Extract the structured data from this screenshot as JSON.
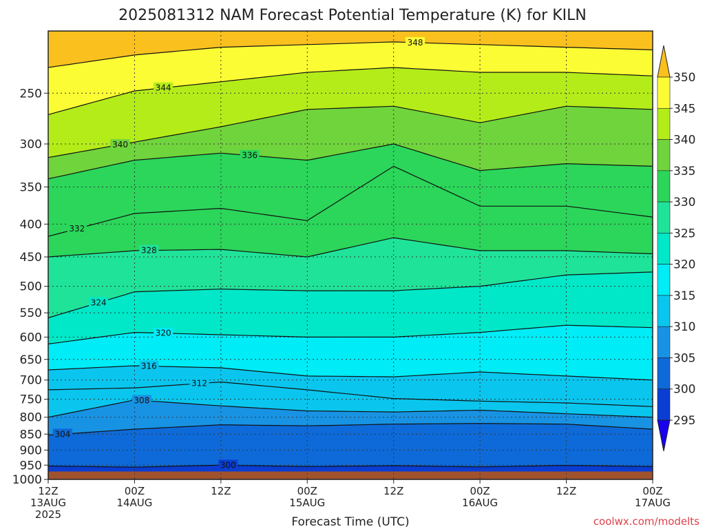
{
  "title": "2025081312 NAM Forecast Potential Temperature (K) for KILN",
  "xlabel": "Forecast Time (UTC)",
  "credit": "coolwx.com/modelts",
  "chart_data": {
    "type": "heatmap",
    "title": "2025081312 NAM Forecast Potential Temperature (K) for KILN",
    "xlabel": "Forecast Time (UTC)",
    "ylabel": "",
    "x_ticks": [
      {
        "hour": 0,
        "line1": "12Z",
        "line2": "13AUG",
        "line3": "2025"
      },
      {
        "hour": 12,
        "line1": "00Z",
        "line2": "14AUG",
        "line3": ""
      },
      {
        "hour": 24,
        "line1": "12Z",
        "line2": "",
        "line3": ""
      },
      {
        "hour": 36,
        "line1": "00Z",
        "line2": "15AUG",
        "line3": ""
      },
      {
        "hour": 48,
        "line1": "12Z",
        "line2": "",
        "line3": ""
      },
      {
        "hour": 60,
        "line1": "00Z",
        "line2": "16AUG",
        "line3": ""
      },
      {
        "hour": 72,
        "line1": "12Z",
        "line2": "",
        "line3": ""
      },
      {
        "hour": 84,
        "line1": "00Z",
        "line2": "17AUG",
        "line3": ""
      }
    ],
    "xlim": [
      0,
      84
    ],
    "y_ticks": [
      250,
      300,
      350,
      400,
      450,
      500,
      550,
      600,
      650,
      700,
      750,
      800,
      850,
      900,
      950,
      1000
    ],
    "ylim": [
      200,
      1000
    ],
    "y_scale": "log",
    "y_reversed": true,
    "colorbar": {
      "levels": [
        295,
        300,
        305,
        310,
        315,
        320,
        325,
        330,
        335,
        340,
        345,
        350
      ],
      "labels": [
        "350",
        "345",
        "340",
        "335",
        "330",
        "325",
        "320",
        "315",
        "310",
        "305",
        "300",
        "295"
      ],
      "colors": [
        "#1800ee",
        "#0a3ed2",
        "#0e6ad8",
        "#1893e4",
        "#0ac6ee",
        "#00ecf6",
        "#00e8c8",
        "#20e39a",
        "#2bd65a",
        "#70d43c",
        "#b4ec1a",
        "#fcfc34",
        "#fac11e"
      ]
    },
    "contour_interval_K": 4,
    "series": [
      {
        "name": "300",
        "label_at_hour": 25,
        "points": [
          [
            0,
            953
          ],
          [
            12,
            957
          ],
          [
            24,
            950
          ],
          [
            36,
            955
          ],
          [
            48,
            952
          ],
          [
            60,
            956
          ],
          [
            72,
            951
          ],
          [
            84,
            955
          ]
        ]
      },
      {
        "name": "304",
        "label_at_hour": 2,
        "points": [
          [
            0,
            853
          ],
          [
            12,
            835
          ],
          [
            24,
            822
          ],
          [
            36,
            825
          ],
          [
            48,
            820
          ],
          [
            60,
            818
          ],
          [
            72,
            820
          ],
          [
            84,
            835
          ]
        ]
      },
      {
        "name": "308",
        "label_at_hour": 13,
        "points": [
          [
            0,
            800
          ],
          [
            12,
            752
          ],
          [
            24,
            768
          ],
          [
            36,
            782
          ],
          [
            48,
            785
          ],
          [
            60,
            780
          ],
          [
            72,
            790
          ],
          [
            84,
            800
          ]
        ]
      },
      {
        "name": "312",
        "label_at_hour": 21,
        "points": [
          [
            0,
            725
          ],
          [
            12,
            720
          ],
          [
            24,
            705
          ],
          [
            36,
            725
          ],
          [
            48,
            748
          ],
          [
            60,
            755
          ],
          [
            72,
            760
          ],
          [
            84,
            770
          ]
        ]
      },
      {
        "name": "316",
        "label_at_hour": 14,
        "points": [
          [
            0,
            675
          ],
          [
            12,
            665
          ],
          [
            24,
            670
          ],
          [
            36,
            690
          ],
          [
            48,
            692
          ],
          [
            60,
            680
          ],
          [
            72,
            690
          ],
          [
            84,
            700
          ]
        ]
      },
      {
        "name": "320",
        "label_at_hour": 16,
        "points": [
          [
            0,
            615
          ],
          [
            12,
            590
          ],
          [
            24,
            595
          ],
          [
            36,
            600
          ],
          [
            48,
            600
          ],
          [
            60,
            590
          ],
          [
            72,
            575
          ],
          [
            84,
            580
          ]
        ]
      },
      {
        "name": "324",
        "label_at_hour": 7,
        "points": [
          [
            0,
            560
          ],
          [
            12,
            510
          ],
          [
            24,
            505
          ],
          [
            36,
            508
          ],
          [
            48,
            508
          ],
          [
            60,
            500
          ],
          [
            72,
            480
          ],
          [
            84,
            475
          ]
        ]
      },
      {
        "name": "328",
        "label_at_hour": 14,
        "points": [
          [
            0,
            450
          ],
          [
            12,
            440
          ],
          [
            24,
            438
          ],
          [
            36,
            450
          ],
          [
            48,
            420
          ],
          [
            60,
            440
          ],
          [
            72,
            440
          ],
          [
            84,
            445
          ]
        ]
      },
      {
        "name": "332",
        "label_at_hour": 4,
        "points": [
          [
            0,
            418
          ],
          [
            12,
            385
          ],
          [
            24,
            378
          ],
          [
            36,
            395
          ],
          [
            48,
            325
          ],
          [
            60,
            375
          ],
          [
            72,
            375
          ],
          [
            84,
            390
          ]
        ]
      },
      {
        "name": "336",
        "label_at_hour": 28,
        "points": [
          [
            0,
            340
          ],
          [
            12,
            318
          ],
          [
            24,
            310
          ],
          [
            36,
            318
          ],
          [
            48,
            300
          ],
          [
            60,
            330
          ],
          [
            72,
            322
          ],
          [
            84,
            325
          ]
        ]
      },
      {
        "name": "340",
        "label_at_hour": 10,
        "points": [
          [
            0,
            315
          ],
          [
            12,
            298
          ],
          [
            24,
            282
          ],
          [
            36,
            265
          ],
          [
            48,
            262
          ],
          [
            60,
            278
          ],
          [
            72,
            262
          ],
          [
            84,
            265
          ]
        ]
      },
      {
        "name": "344",
        "label_at_hour": 16,
        "points": [
          [
            0,
            270
          ],
          [
            12,
            248
          ],
          [
            24,
            240
          ],
          [
            36,
            232
          ],
          [
            48,
            228
          ],
          [
            60,
            232
          ],
          [
            72,
            232
          ],
          [
            84,
            235
          ]
        ]
      },
      {
        "name": "348",
        "label_at_hour": 51,
        "points": [
          [
            0,
            228
          ],
          [
            12,
            218
          ],
          [
            24,
            212
          ],
          [
            36,
            210
          ],
          [
            48,
            208
          ],
          [
            60,
            210
          ],
          [
            72,
            212
          ],
          [
            84,
            214
          ]
        ]
      }
    ],
    "terrain_pressure": 972,
    "grid": true,
    "legend": "colorbar-right"
  }
}
